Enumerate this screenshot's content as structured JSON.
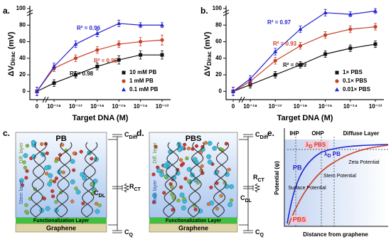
{
  "chart_data": [
    {
      "type": "line",
      "panel_label": "a.",
      "x_label": "Target DNA (M)",
      "y_label": {
        "main": "ΔV",
        "sub": "Dirac",
        "unit": " (mV)"
      },
      "categories": [
        "0",
        "10⁻¹⁸",
        "10⁻¹⁷",
        "10⁻¹⁶",
        "10⁻¹⁵",
        "10⁻¹⁴",
        "10⁻¹³"
      ],
      "ylim": [
        -10,
        100
      ],
      "yticks": [
        0,
        20,
        40,
        60,
        80,
        100
      ],
      "legend": "lower right",
      "series": [
        {
          "name": "10 mM PB",
          "color": "#111111",
          "marker": "square",
          "values": [
            0,
            10,
            20,
            30,
            38,
            44,
            44
          ],
          "errors": [
            5,
            4,
            4,
            4,
            5,
            5,
            5
          ]
        },
        {
          "name": "1 mM PB",
          "color": "#c8402a",
          "marker": "circle",
          "values": [
            0,
            28,
            40,
            50,
            57,
            60,
            62
          ],
          "errors": [
            5,
            4,
            4,
            4,
            4,
            5,
            6
          ]
        },
        {
          "name": "0.1 mM PB",
          "color": "#2424d0",
          "marker": "triangle",
          "values": [
            0,
            30,
            57,
            70,
            82,
            80,
            80
          ],
          "errors": [
            5,
            4,
            4,
            4,
            4,
            3,
            3
          ]
        }
      ],
      "annotations": [
        {
          "text": "R² = 0.96",
          "color": "#2424d0"
        },
        {
          "text": "R² = 0.95",
          "color": "#c8402a"
        },
        {
          "text": "R² = 0.98",
          "color": "#111111"
        }
      ]
    },
    {
      "type": "line",
      "panel_label": "b.",
      "x_label": "Target DNA (M)",
      "y_label": {
        "main": "ΔV",
        "sub": "Dirac",
        "unit": " (mV)"
      },
      "categories": [
        "0",
        "10⁻¹⁸",
        "10⁻¹⁷",
        "10⁻¹⁶",
        "10⁻¹⁵",
        "10⁻¹⁴",
        "10⁻¹³"
      ],
      "ylim": [
        -10,
        100
      ],
      "yticks": [
        0,
        20,
        40,
        60,
        80,
        100
      ],
      "legend": "lower right",
      "series": [
        {
          "name": "1× PBS",
          "color": "#111111",
          "marker": "square",
          "values": [
            0,
            8,
            20,
            32,
            45,
            52,
            57
          ],
          "errors": [
            5,
            4,
            4,
            4,
            4,
            4,
            4
          ]
        },
        {
          "name": "0.1× PBS",
          "color": "#c8402a",
          "marker": "circle",
          "values": [
            0,
            12,
            37,
            55,
            68,
            75,
            78
          ],
          "errors": [
            5,
            4,
            4,
            4,
            4,
            4,
            4
          ]
        },
        {
          "name": "0.01× PBS",
          "color": "#2424d0",
          "marker": "triangle",
          "values": [
            0,
            15,
            48,
            75,
            95,
            93,
            97
          ],
          "errors": [
            5,
            4,
            4,
            4,
            4,
            3,
            3
          ]
        }
      ],
      "annotations": [
        {
          "text": "R² = 0.97",
          "color": "#2424d0"
        },
        {
          "text": "R² = 0.93",
          "color": "#c8402a"
        },
        {
          "text": "R² = 0.99",
          "color": "#111111"
        }
      ]
    }
  ],
  "diagrams": {
    "c": {
      "panel_label": "c.",
      "solution": "PB",
      "diff_layer": "Diff. layer",
      "stern_layer": "Stern layer",
      "functionalization": "Functionalization Layer",
      "graphene": "Graphene",
      "c_diff": {
        "main": "C",
        "sub": "Diff"
      },
      "c_dl": {
        "main": "C",
        "sub": "DL"
      },
      "r_ct": {
        "main": "R",
        "sub": "CT"
      },
      "c_q": {
        "main": "C",
        "sub": "Q"
      }
    },
    "d": {
      "panel_label": "d.",
      "solution": "PBS",
      "diff_layer": "Diff. layer",
      "stern_layer": "Stern layer",
      "functionalization": "Functionalization Layer",
      "graphene": "Graphene",
      "c_diff": {
        "main": "C",
        "sub": "Diff"
      },
      "c_dl": {
        "main": "C",
        "sub": "DL"
      },
      "r_ct": {
        "main": "R",
        "sub": "CT"
      },
      "c_q": {
        "main": "C",
        "sub": "Q"
      }
    },
    "e": {
      "panel_label": "e.",
      "ihp": "IHP",
      "ohp": "OHP",
      "diffuse_layer": "Diffuse Layer",
      "lambda_pbs": {
        "main": "λ",
        "sub": "D",
        "rest": " PBS"
      },
      "lambda_pb": {
        "main": "λ",
        "sub": "D",
        "rest": " PB"
      },
      "pb": "PB",
      "pbs": "PBS",
      "zeta": "Zeta Potential",
      "stern": "Stern Potential",
      "surface": "Surface Potential",
      "y_label": "Potential (ψ)",
      "x_label": "Distance from graphene"
    }
  }
}
